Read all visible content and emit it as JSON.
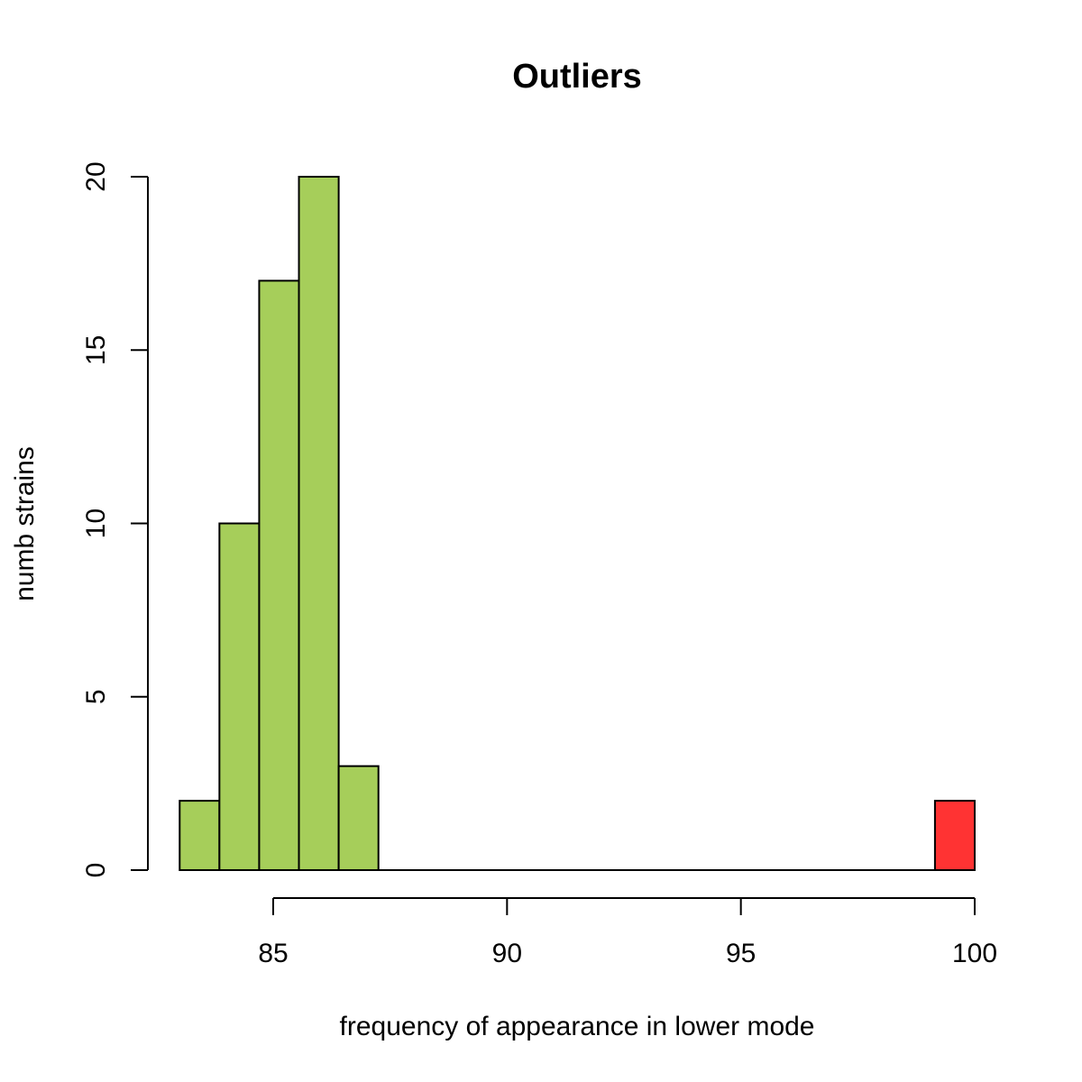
{
  "chart_data": {
    "type": "bar",
    "title": "Outliers",
    "xlabel": "frequency of appearance in lower mode",
    "ylabel": "numb strains",
    "xlim": [
      82.0,
      100.0
    ],
    "ylim": [
      0,
      20
    ],
    "x_ticks": [
      85,
      90,
      95,
      100
    ],
    "x_tick_labels": [
      "85",
      "90",
      "95",
      "100"
    ],
    "y_ticks": [
      0,
      5,
      10,
      15,
      20
    ],
    "y_tick_labels": [
      "0",
      "5",
      "10",
      "15",
      "20"
    ],
    "grid": false,
    "series": [
      {
        "color": "#a6ce5a",
        "bins": [
          {
            "x0": 83.0,
            "x1": 83.85,
            "count": 2
          },
          {
            "x0": 83.85,
            "x1": 84.7,
            "count": 10
          },
          {
            "x0": 84.7,
            "x1": 85.55,
            "count": 17
          },
          {
            "x0": 85.55,
            "x1": 86.4,
            "count": 20
          },
          {
            "x0": 86.4,
            "x1": 87.25,
            "count": 3
          }
        ]
      },
      {
        "color": "#ff3333",
        "bins": [
          {
            "x0": 99.15,
            "x1": 100.0,
            "count": 2
          }
        ]
      }
    ]
  }
}
